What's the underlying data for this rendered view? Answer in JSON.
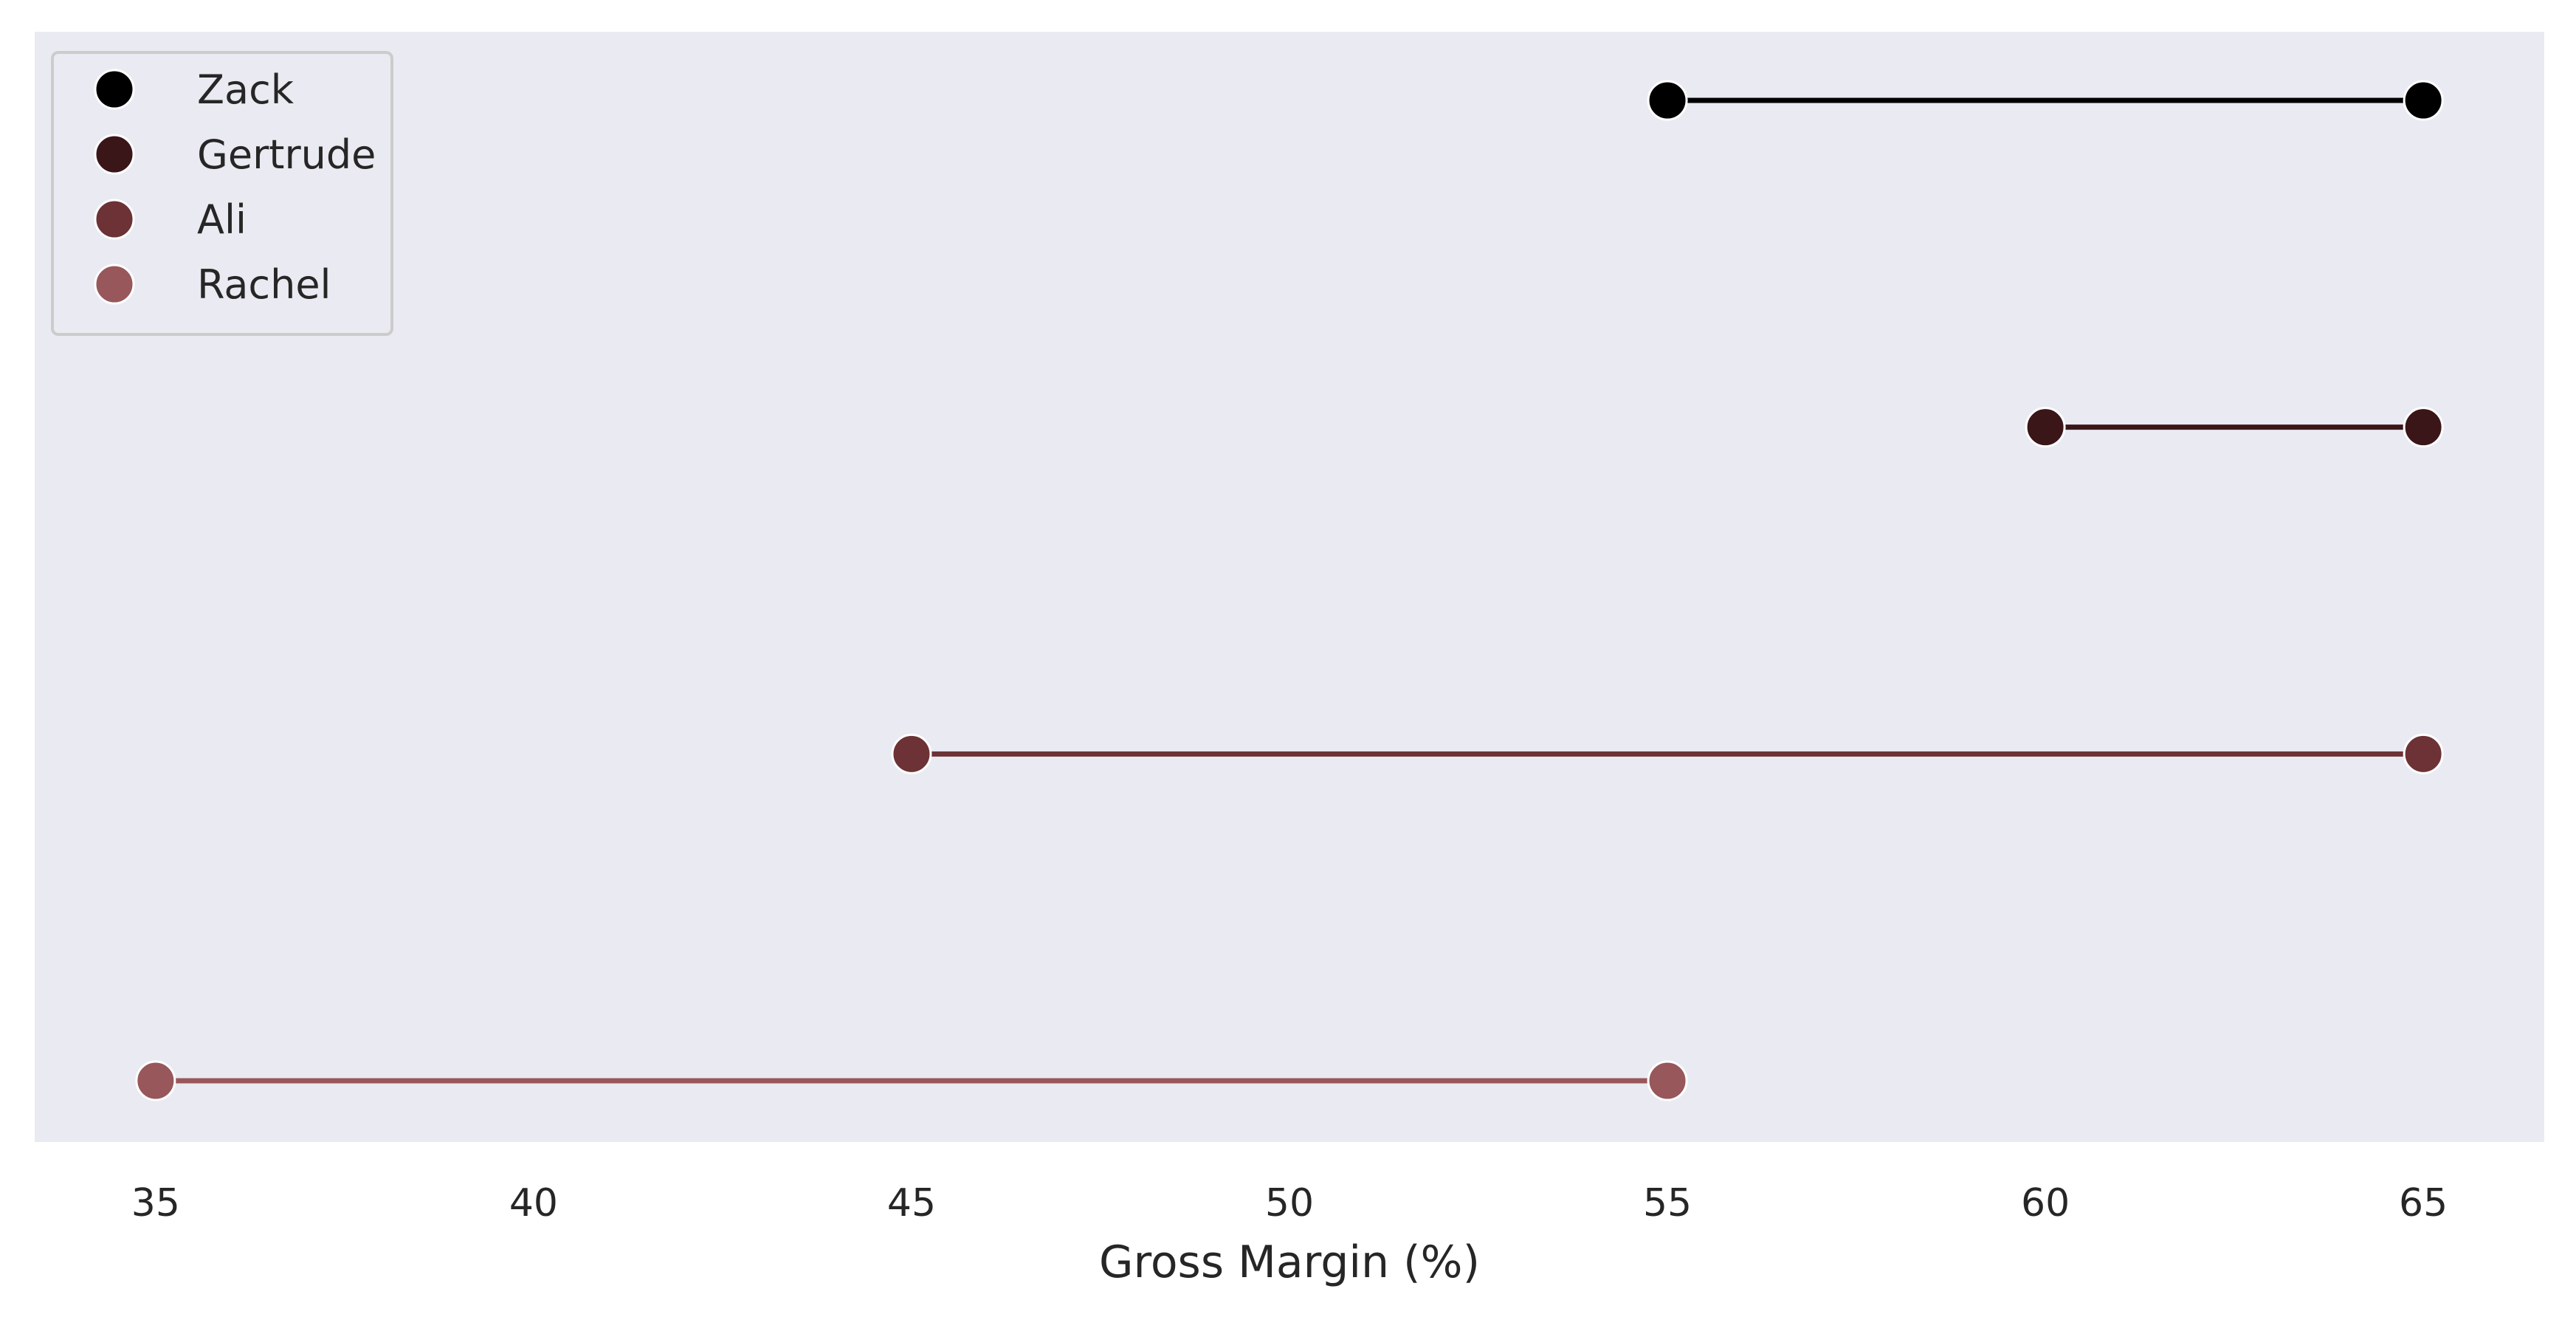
{
  "chart_data": {
    "type": "dumbbell",
    "title": "",
    "xlabel": "Gross Margin (%)",
    "ylabel": "",
    "xlim": [
      33.4,
      66.6
    ],
    "xticks": [
      35,
      40,
      45,
      50,
      55,
      60,
      65
    ],
    "grid": false,
    "legend": {
      "position": "top-left"
    },
    "series": [
      {
        "name": "Zack",
        "start": 55,
        "end": 65,
        "color": "#000000"
      },
      {
        "name": "Gertrude",
        "start": 60,
        "end": 65,
        "color": "#3a1619"
      },
      {
        "name": "Ali",
        "start": 45,
        "end": 65,
        "color": "#6c3235"
      },
      {
        "name": "Rachel",
        "start": 35,
        "end": 55,
        "color": "#98575b"
      }
    ],
    "colors": {
      "plot_background": "#eaeaf2",
      "page_background": "#ffffff",
      "legend_background": "#eaeaf2",
      "legend_border": "#cccccc"
    }
  }
}
